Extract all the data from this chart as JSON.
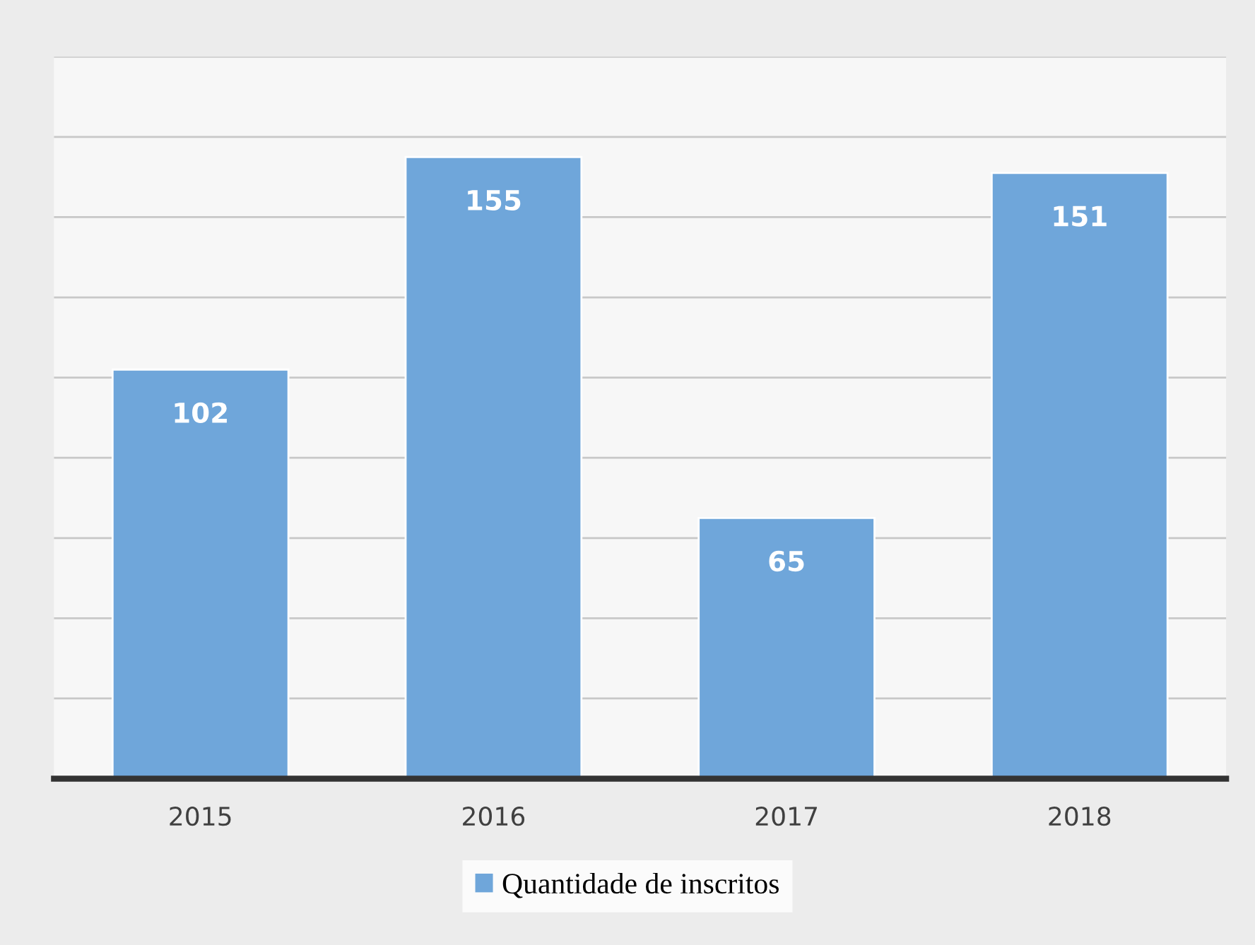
{
  "chart_data": {
    "type": "bar",
    "categories": [
      "2015",
      "2016",
      "2017",
      "2018"
    ],
    "series": [
      {
        "name": "Quantidade de inscritos",
        "color": "#6fa6da",
        "values": [
          102,
          155,
          65,
          151
        ]
      }
    ],
    "ylim": [
      0,
      180
    ],
    "yticks": [
      {
        "value": 0,
        "label": null
      },
      {
        "value": 20,
        "label": null
      },
      {
        "value": 40,
        "label": null
      },
      {
        "value": 60,
        "label": null
      },
      {
        "value": 80,
        "label": null
      },
      {
        "value": 100,
        "label": null
      },
      {
        "value": 120,
        "label": null
      },
      {
        "value": 140,
        "label": null
      },
      {
        "value": 160,
        "label": null
      },
      {
        "value": 180,
        "label": null
      }
    ],
    "tick_labels": "x",
    "grid": "y",
    "data_labels": true,
    "legend": "bottom"
  }
}
